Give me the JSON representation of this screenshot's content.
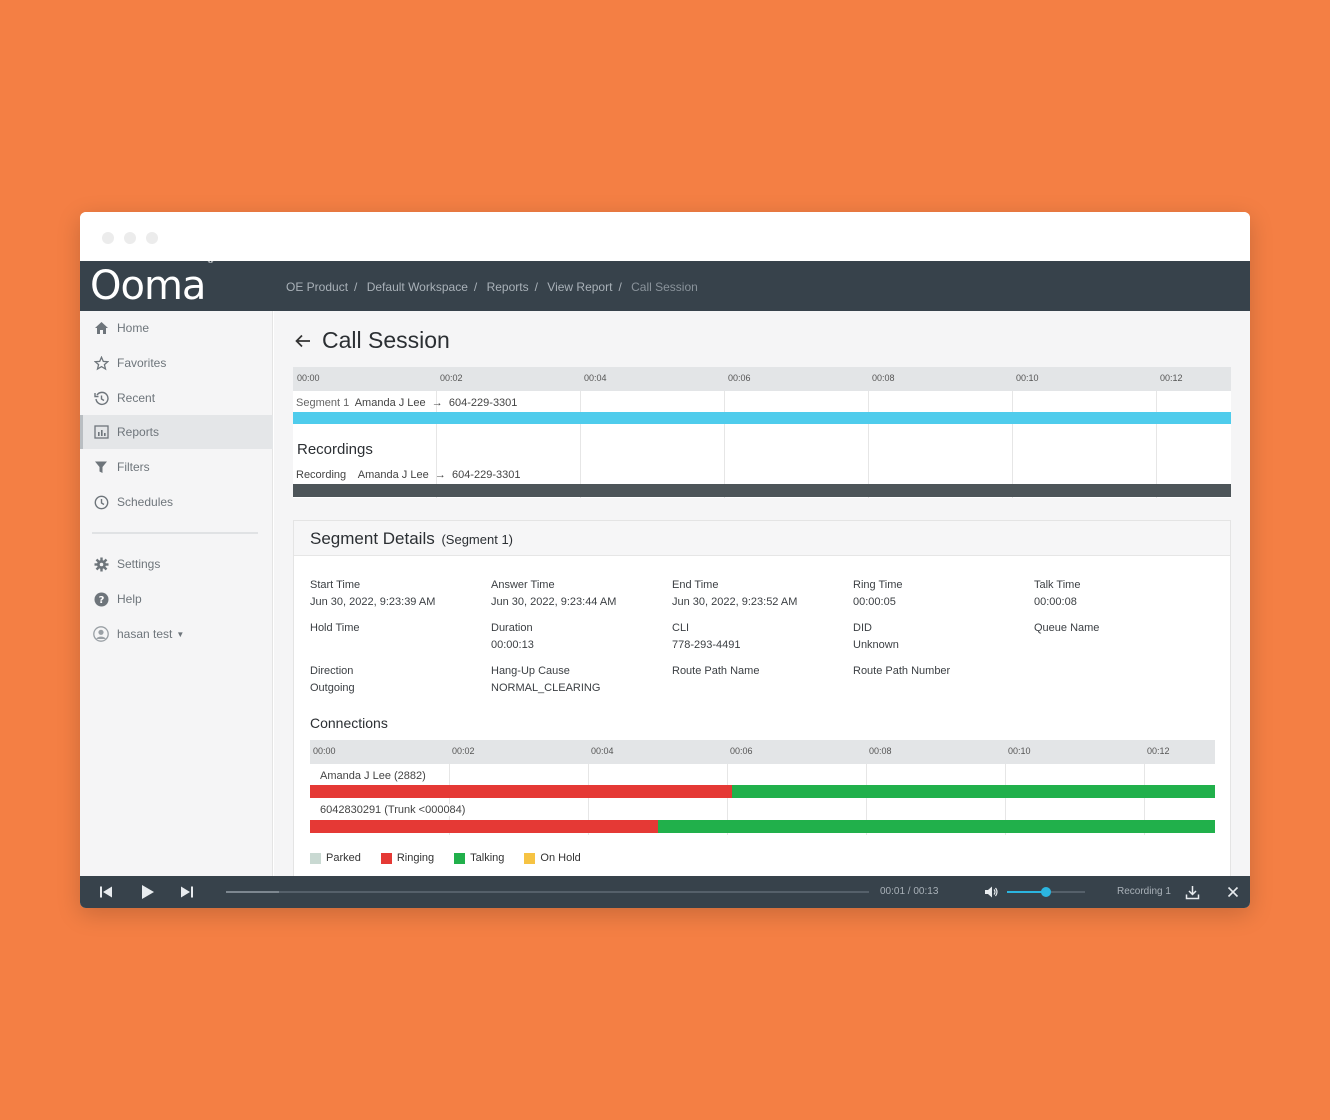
{
  "app": {
    "logo": "Ooma",
    "breadcrumb": [
      "OE Product",
      "Default Workspace",
      "Reports",
      "View Report",
      "Call Session"
    ]
  },
  "sidebar": {
    "items": [
      {
        "label": "Home",
        "icon": "home-icon"
      },
      {
        "label": "Favorites",
        "icon": "star-icon"
      },
      {
        "label": "Recent",
        "icon": "history-icon"
      },
      {
        "label": "Reports",
        "icon": "reports-icon",
        "active": true
      },
      {
        "label": "Filters",
        "icon": "filter-icon"
      },
      {
        "label": "Schedules",
        "icon": "clock-icon"
      }
    ],
    "bottom_items": [
      {
        "label": "Settings",
        "icon": "gear-icon"
      },
      {
        "label": "Help",
        "icon": "help-icon"
      },
      {
        "label": "hasan test",
        "icon": "user-icon"
      }
    ]
  },
  "page": {
    "title": "Call Session"
  },
  "timeline": {
    "ticks": [
      "00:00",
      "00:02",
      "00:04",
      "00:06",
      "00:08",
      "00:10",
      "00:12"
    ],
    "segment_prefix": "Segment 1",
    "segment_from": "Amanda J Lee",
    "segment_to": "604-229-3301",
    "recordings_title": "Recordings",
    "recording_prefix": "Recording",
    "recording_from": "Amanda J Lee",
    "recording_to": "604-229-3301",
    "colors": {
      "segment": "#4FCCEC",
      "recording": "#4D5559"
    }
  },
  "segment_details": {
    "title": "Segment Details",
    "subtitle": "(Segment 1)",
    "fields": [
      {
        "label": "Start Time",
        "value": "Jun 30, 2022, 9:23:39 AM"
      },
      {
        "label": "Answer Time",
        "value": "Jun 30, 2022, 9:23:44 AM"
      },
      {
        "label": "End Time",
        "value": "Jun 30, 2022, 9:23:52 AM"
      },
      {
        "label": "Ring Time",
        "value": "00:00:05"
      },
      {
        "label": "Talk Time",
        "value": "00:00:08"
      },
      {
        "label": "Hold Time",
        "value": ""
      },
      {
        "label": "Duration",
        "value": "00:00:13"
      },
      {
        "label": "CLI",
        "value": "778-293-4491"
      },
      {
        "label": "DID",
        "value": "Unknown"
      },
      {
        "label": "Queue Name",
        "value": ""
      },
      {
        "label": "Direction",
        "value": "Outgoing"
      },
      {
        "label": "Hang-Up Cause",
        "value": "NORMAL_CLEARING"
      },
      {
        "label": "Route Path Name",
        "value": ""
      },
      {
        "label": "Route Path Number",
        "value": ""
      }
    ]
  },
  "connections": {
    "title": "Connections",
    "ticks": [
      "00:00",
      "00:02",
      "00:04",
      "00:06",
      "00:08",
      "00:10",
      "00:12"
    ],
    "rows": [
      {
        "label": "Amanda J Lee (2882)",
        "ringing_fraction": 0.466
      },
      {
        "label": "6042830291 (Trunk <000084)",
        "ringing_fraction": 0.385
      }
    ],
    "legend": [
      {
        "label": "Parked",
        "color": "#C9D9D2"
      },
      {
        "label": "Ringing",
        "color": "#E53935"
      },
      {
        "label": "Talking",
        "color": "#21B04B"
      },
      {
        "label": "On Hold",
        "color": "#F6C343"
      }
    ]
  },
  "player": {
    "time": "00:01 / 00:13",
    "progress": 0.083,
    "volume": 0.5,
    "recording_name": "Recording 1"
  }
}
